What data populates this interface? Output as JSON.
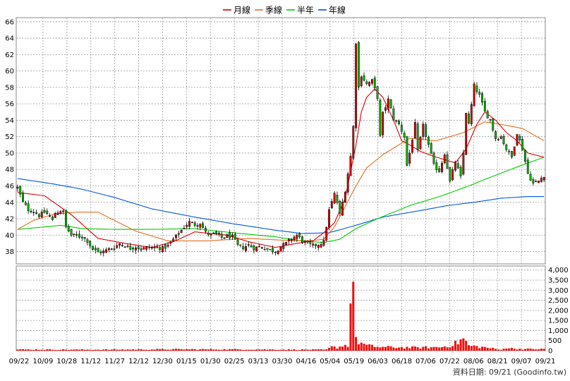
{
  "legend": [
    {
      "label": "月線",
      "color": "#dd0000"
    },
    {
      "label": "季線",
      "color": "#e07020"
    },
    {
      "label": "半年",
      "color": "#00cc00"
    },
    {
      "label": "年線",
      "color": "#0055dd"
    }
  ],
  "source_text": "資料日期: 09/21 (Goodinfo.tw)",
  "chart_data": {
    "type": "candlestick",
    "price_axis": {
      "ticks": [
        38,
        40,
        42,
        44,
        46,
        48,
        50,
        52,
        54,
        56,
        58,
        60,
        62,
        64,
        66
      ],
      "ylim": [
        36.5,
        66.5
      ]
    },
    "volume_axis": {
      "ticks": [
        "0",
        "500",
        "1,000",
        "1,500",
        "2,000",
        "2,500",
        "3,000",
        "3,500",
        "4,000"
      ],
      "ylim": [
        0,
        4200
      ]
    },
    "x_labels": [
      "09/22",
      "10/09",
      "10/28",
      "11/12",
      "11/27",
      "12/12",
      "12/30",
      "01/15",
      "01/30",
      "02/25",
      "03/13",
      "03/30",
      "04/16",
      "05/04",
      "05/19",
      "06/03",
      "06/18",
      "07/06",
      "07/22",
      "08/06",
      "08/21",
      "09/07",
      "09/21"
    ],
    "up_color": "#dd0000",
    "down_color": "#00bb00",
    "grid": true,
    "volume_anchors": [
      [
        0,
        60
      ],
      [
        30,
        50
      ],
      [
        60,
        70
      ],
      [
        90,
        60
      ],
      [
        115,
        50
      ],
      [
        117,
        180
      ],
      [
        119,
        160
      ],
      [
        121,
        250
      ],
      [
        123,
        280
      ],
      [
        125,
        4150
      ],
      [
        126,
        500
      ],
      [
        128,
        380
      ],
      [
        130,
        250
      ],
      [
        135,
        180
      ],
      [
        150,
        150
      ],
      [
        158,
        180
      ],
      [
        162,
        300
      ],
      [
        164,
        420
      ],
      [
        166,
        600
      ],
      [
        168,
        250
      ],
      [
        175,
        150
      ],
      [
        179,
        60
      ],
      [
        180,
        40
      ],
      [
        181,
        150
      ],
      [
        185,
        100
      ],
      [
        189,
        80
      ]
    ],
    "candle_anchors": [
      [
        0,
        45.8
      ],
      [
        2,
        44.0
      ],
      [
        4,
        43.1
      ],
      [
        6,
        42.9
      ],
      [
        8,
        42.4
      ],
      [
        10,
        42.8
      ],
      [
        12,
        42.3
      ],
      [
        13,
        41.8
      ],
      [
        14,
        42.7
      ],
      [
        16,
        43.0
      ],
      [
        17,
        42.8
      ],
      [
        18,
        41.0
      ],
      [
        20,
        40.0
      ],
      [
        24,
        39.8
      ],
      [
        26,
        39.3
      ],
      [
        28,
        38.3
      ],
      [
        30,
        37.9
      ],
      [
        32,
        38.0
      ],
      [
        34,
        38.3
      ],
      [
        36,
        38.5
      ],
      [
        38,
        39.0
      ],
      [
        40,
        38.7
      ],
      [
        42,
        38.4
      ],
      [
        44,
        38.6
      ],
      [
        46,
        38.3
      ],
      [
        48,
        38.5
      ],
      [
        52,
        38.5
      ],
      [
        54,
        38.4
      ],
      [
        56,
        38.7
      ],
      [
        58,
        39.5
      ],
      [
        60,
        40.2
      ],
      [
        62,
        41.0
      ],
      [
        64,
        41.6
      ],
      [
        66,
        41.3
      ],
      [
        68,
        41.5
      ],
      [
        70,
        40.3
      ],
      [
        72,
        40.0
      ],
      [
        74,
        40.1
      ],
      [
        76,
        39.7
      ],
      [
        78,
        39.9
      ],
      [
        80,
        39.8
      ],
      [
        82,
        38.7
      ],
      [
        84,
        38.5
      ],
      [
        86,
        38.8
      ],
      [
        88,
        38.4
      ],
      [
        90,
        38.6
      ],
      [
        92,
        38.4
      ],
      [
        94,
        38.2
      ],
      [
        96,
        38.0
      ],
      [
        98,
        38.6
      ],
      [
        100,
        39.0
      ],
      [
        102,
        39.6
      ],
      [
        104,
        40.0
      ],
      [
        106,
        39.3
      ],
      [
        108,
        38.9
      ],
      [
        110,
        38.7
      ],
      [
        112,
        38.9
      ],
      [
        114,
        39.2
      ],
      [
        116,
        43.0
      ],
      [
        118,
        45.0
      ],
      [
        119,
        44.0
      ],
      [
        120,
        42.5
      ],
      [
        122,
        45.5
      ],
      [
        124,
        49.6
      ],
      [
        125,
        53.2
      ],
      [
        126,
        63.5
      ],
      [
        127,
        58.0
      ],
      [
        128,
        59.5
      ],
      [
        130,
        58.4
      ],
      [
        132,
        58.8
      ],
      [
        134,
        56.8
      ],
      [
        135,
        52.0
      ],
      [
        136,
        54.8
      ],
      [
        138,
        56.5
      ],
      [
        140,
        54.2
      ],
      [
        142,
        53.5
      ],
      [
        144,
        52.0
      ],
      [
        145,
        48.5
      ],
      [
        146,
        50.0
      ],
      [
        148,
        53.5
      ],
      [
        149,
        50.2
      ],
      [
        151,
        53.3
      ],
      [
        153,
        51.0
      ],
      [
        155,
        48.5
      ],
      [
        157,
        47.8
      ],
      [
        159,
        50.0
      ],
      [
        161,
        46.5
      ],
      [
        163,
        49.0
      ],
      [
        165,
        47.0
      ],
      [
        166,
        50.0
      ],
      [
        167,
        55.0
      ],
      [
        168,
        53.5
      ],
      [
        170,
        58.2
      ],
      [
        172,
        57.0
      ],
      [
        174,
        55.0
      ],
      [
        176,
        54.0
      ],
      [
        178,
        51.8
      ],
      [
        180,
        52.0
      ],
      [
        182,
        50.5
      ],
      [
        184,
        49.5
      ],
      [
        186,
        52.5
      ],
      [
        188,
        50.5
      ],
      [
        190,
        47.5
      ],
      [
        192,
        46.3
      ],
      [
        194,
        46.6
      ],
      [
        196,
        47.3
      ]
    ],
    "ma_month_anchors": [
      [
        0,
        45.2
      ],
      [
        10,
        44.8
      ],
      [
        20,
        42.5
      ],
      [
        30,
        39.6
      ],
      [
        40,
        39.0
      ],
      [
        50,
        38.5
      ],
      [
        58,
        39.2
      ],
      [
        66,
        40.4
      ],
      [
        78,
        40.0
      ],
      [
        86,
        39.2
      ],
      [
        96,
        38.5
      ],
      [
        104,
        39.0
      ],
      [
        110,
        39.3
      ],
      [
        114,
        40.3
      ],
      [
        118,
        41.5
      ],
      [
        122,
        44.5
      ],
      [
        126,
        51.0
      ],
      [
        128,
        55.0
      ],
      [
        130,
        56.8
      ],
      [
        133,
        57.8
      ],
      [
        136,
        56.8
      ],
      [
        140,
        54.0
      ],
      [
        143,
        51.5
      ],
      [
        146,
        51.0
      ],
      [
        150,
        50.2
      ],
      [
        155,
        49.6
      ],
      [
        159,
        49.2
      ],
      [
        163,
        48.8
      ],
      [
        167,
        50.5
      ],
      [
        171,
        53.5
      ],
      [
        174,
        55.0
      ],
      [
        178,
        54.0
      ],
      [
        182,
        52.5
      ],
      [
        186,
        51.5
      ],
      [
        190,
        50.0
      ],
      [
        196,
        49.5
      ]
    ],
    "ma_quarter_anchors": [
      [
        0,
        40.7
      ],
      [
        6,
        41.8
      ],
      [
        14,
        42.6
      ],
      [
        22,
        42.8
      ],
      [
        30,
        42.8
      ],
      [
        36,
        41.8
      ],
      [
        44,
        40.5
      ],
      [
        56,
        39.3
      ],
      [
        70,
        39.3
      ],
      [
        86,
        39.6
      ],
      [
        98,
        39.4
      ],
      [
        108,
        39.3
      ],
      [
        114,
        39.5
      ],
      [
        118,
        41.0
      ],
      [
        122,
        43.5
      ],
      [
        126,
        46.0
      ],
      [
        130,
        48.2
      ],
      [
        136,
        49.8
      ],
      [
        146,
        51.8
      ],
      [
        156,
        51.5
      ],
      [
        166,
        52.5
      ],
      [
        174,
        53.8
      ],
      [
        180,
        53.5
      ],
      [
        188,
        53.0
      ],
      [
        196,
        51.5
      ]
    ],
    "ma_half_anchors": [
      [
        0,
        40.7
      ],
      [
        10,
        41.0
      ],
      [
        16,
        41.2
      ],
      [
        24,
        40.8
      ],
      [
        36,
        40.7
      ],
      [
        50,
        40.7
      ],
      [
        66,
        40.8
      ],
      [
        80,
        40.3
      ],
      [
        96,
        39.8
      ],
      [
        106,
        39.3
      ],
      [
        114,
        39.1
      ],
      [
        120,
        39.5
      ],
      [
        126,
        40.8
      ],
      [
        134,
        42.0
      ],
      [
        146,
        43.6
      ],
      [
        158,
        44.8
      ],
      [
        168,
        46.0
      ],
      [
        178,
        47.3
      ],
      [
        186,
        48.3
      ],
      [
        196,
        49.5
      ]
    ],
    "ma_year_anchors": [
      [
        0,
        46.9
      ],
      [
        14,
        46.2
      ],
      [
        24,
        45.6
      ],
      [
        36,
        44.6
      ],
      [
        50,
        43.2
      ],
      [
        66,
        42.2
      ],
      [
        80,
        41.4
      ],
      [
        96,
        40.6
      ],
      [
        106,
        40.2
      ],
      [
        116,
        40.3
      ],
      [
        126,
        41.2
      ],
      [
        136,
        42.2
      ],
      [
        150,
        43.0
      ],
      [
        160,
        43.6
      ],
      [
        170,
        44.0
      ],
      [
        180,
        44.5
      ],
      [
        190,
        44.7
      ],
      [
        196,
        44.7
      ]
    ]
  }
}
